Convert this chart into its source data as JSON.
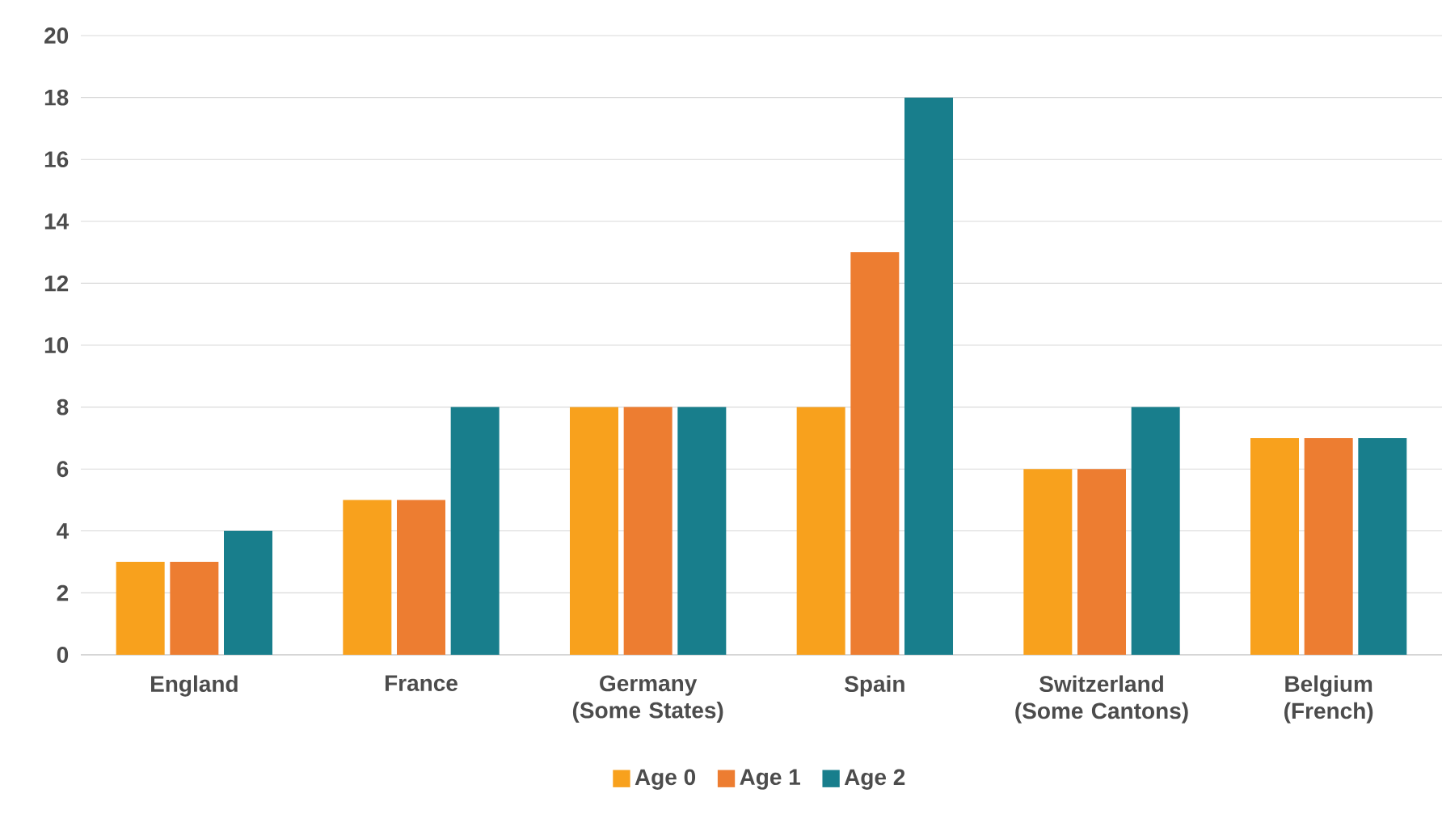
{
  "chart_data": {
    "type": "bar",
    "categories": [
      "England",
      "France",
      "Germany (Some States)",
      "Spain",
      "Switzerland (Some Cantons)",
      "Belgium (French)"
    ],
    "series": [
      {
        "name": "Age 0",
        "color": "#f8a11d",
        "values": [
          3,
          5,
          8,
          8,
          6,
          7
        ]
      },
      {
        "name": "Age 1",
        "color": "#ed7d31",
        "values": [
          3,
          5,
          8,
          13,
          6,
          7
        ]
      },
      {
        "name": "Age 2",
        "color": "#187e8c",
        "values": [
          4,
          8,
          8,
          18,
          8,
          7
        ]
      }
    ],
    "ylim": [
      0,
      20
    ],
    "yticks": [
      0,
      2,
      4,
      6,
      8,
      10,
      12,
      14,
      16,
      18,
      20
    ],
    "grid": "y",
    "legend": "bottom"
  }
}
